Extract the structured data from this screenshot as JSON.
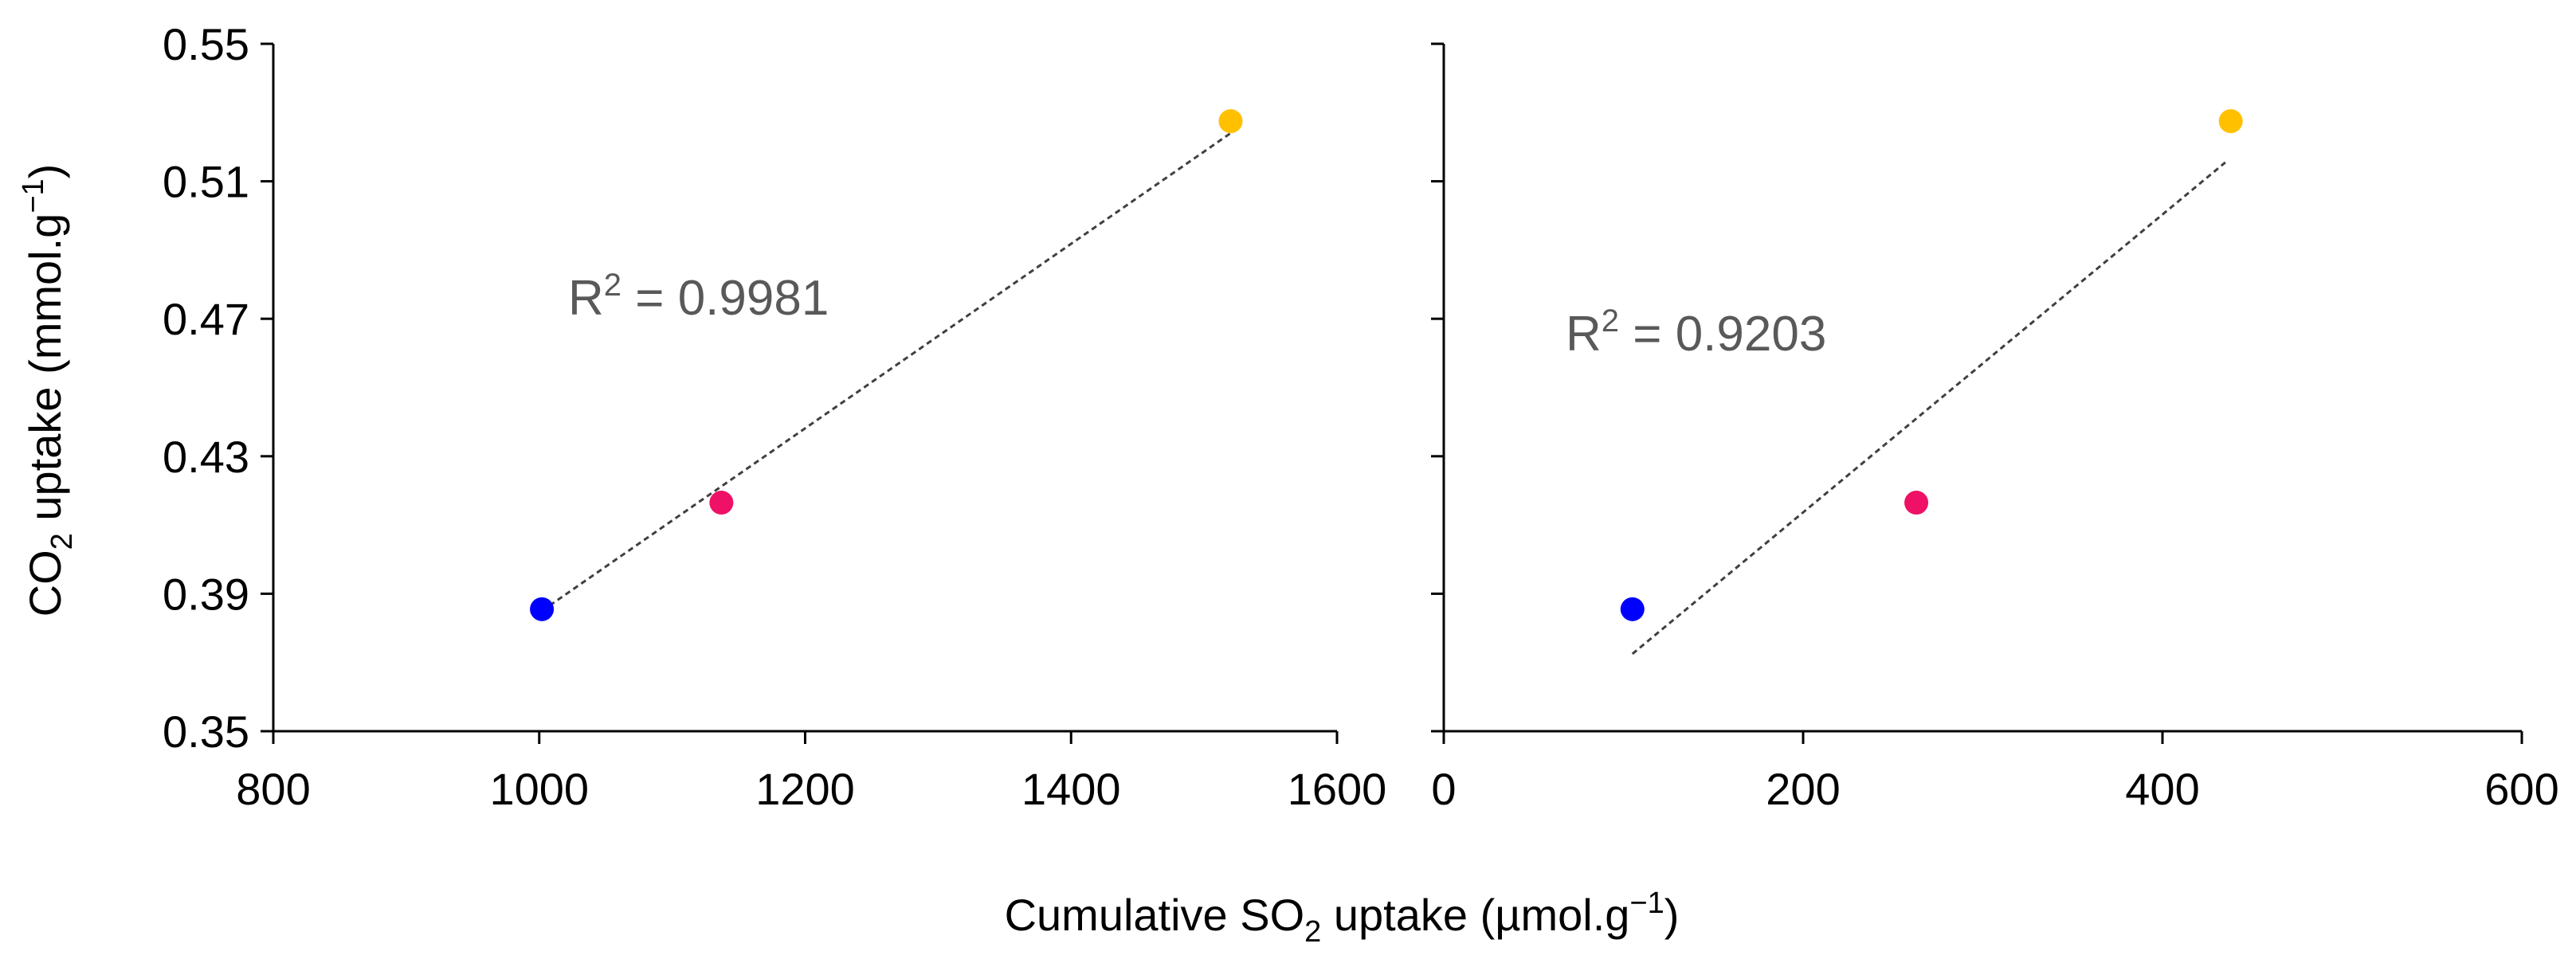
{
  "chart_data": [
    {
      "type": "scatter",
      "xlabel": "",
      "ylabel": "",
      "xlim": [
        800,
        1600
      ],
      "ylim": [
        0.35,
        0.55
      ],
      "xticks": [
        "800",
        "1000",
        "1200",
        "1400",
        "1600"
      ],
      "yticks": [
        "0.35",
        "0.39",
        "0.43",
        "0.47",
        "0.51",
        "0.55"
      ],
      "points": [
        {
          "x": 1002,
          "y": 0.3855,
          "color": "#0000ff"
        },
        {
          "x": 1137,
          "y": 0.4165,
          "color": "#ee1166"
        },
        {
          "x": 1520,
          "y": 0.5275,
          "color": "#ffc000"
        }
      ],
      "trendline": {
        "type": "linear",
        "x": [
          1002,
          1520
        ],
        "y": [
          0.385,
          0.524
        ]
      },
      "annotation": {
        "prefix": "R",
        "superscript": "2",
        "text": " = 0.9981"
      }
    },
    {
      "type": "scatter",
      "xlabel": "",
      "ylabel": "",
      "xlim": [
        0,
        600
      ],
      "ylim": [
        0.35,
        0.55
      ],
      "xticks": [
        "0",
        "200",
        "400",
        "600"
      ],
      "yticks": [
        "0.35",
        "0.39",
        "0.43",
        "0.47",
        "0.51",
        "0.55"
      ],
      "points": [
        {
          "x": 105,
          "y": 0.3855,
          "color": "#0000ff"
        },
        {
          "x": 263,
          "y": 0.4165,
          "color": "#ee1166"
        },
        {
          "x": 438,
          "y": 0.5275,
          "color": "#ffc000"
        }
      ],
      "trendline": {
        "type": "linear",
        "x": [
          105,
          435
        ],
        "y": [
          0.3725,
          0.5155
        ]
      },
      "annotation": {
        "prefix": "R",
        "superscript": "2",
        "text": " = 0.9203"
      }
    }
  ],
  "ylabel": {
    "pre": "CO",
    "sub": "2",
    "mid": " uptake (mmol.g",
    "sup": "−1",
    "post": ")"
  },
  "xlabel": {
    "pre": "Cumulative SO",
    "sub": "2",
    "mid": " uptake (µmol.g",
    "sup": "−1",
    "post": ")"
  }
}
